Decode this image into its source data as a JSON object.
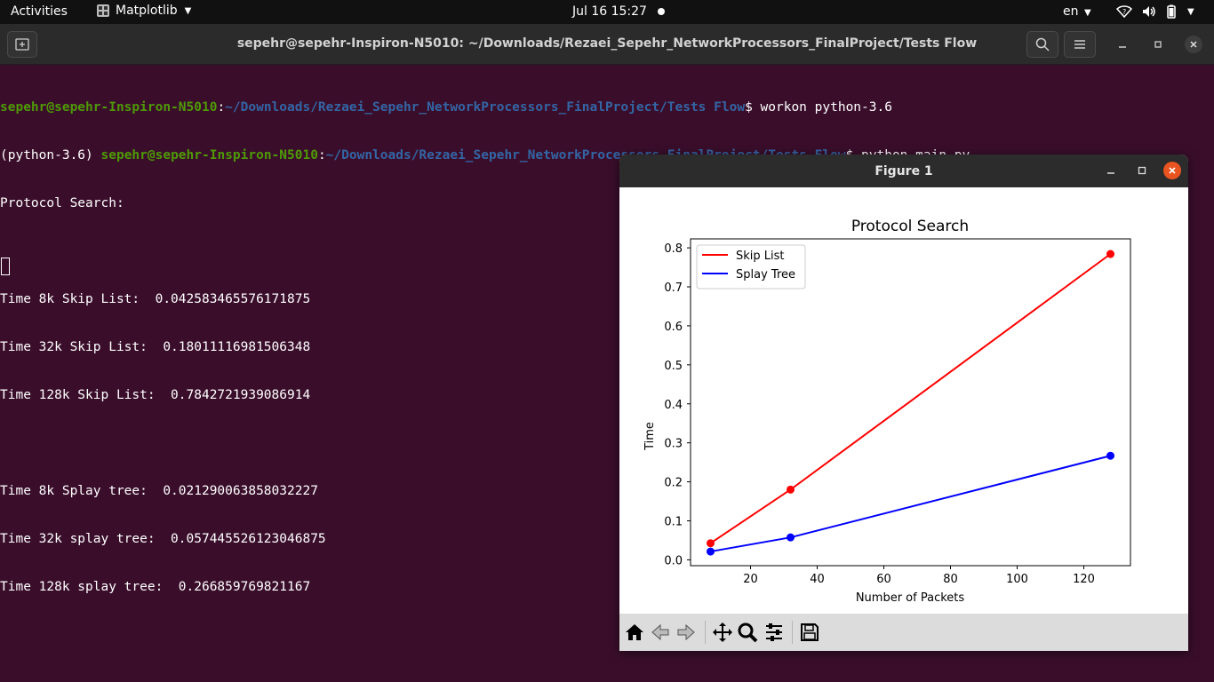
{
  "topbar": {
    "activities": "Activities",
    "app_name": "Matplotlib",
    "clock": "Jul 16  15:27",
    "language": "en"
  },
  "terminal": {
    "title": "sepehr@sepehr-Inspiron-N5010: ~/Downloads/Rezaei_Sepehr_NetworkProcessors_FinalProject/Tests Flow",
    "prompt1": {
      "user": "sepehr@sepehr-Inspiron-N5010",
      "path": "~/Downloads/Rezaei_Sepehr_NetworkProcessors_FinalProject/Tests Flow",
      "command": "$ workon python-3.6"
    },
    "prompt2": {
      "venv": "(python-3.6) ",
      "user": "sepehr@sepehr-Inspiron-N5010",
      "path": "~/Downloads/Rezaei_Sepehr_NetworkProcessors_FinalProject/Tests Flow",
      "command": "$ python main.py"
    },
    "output": [
      "Protocol Search:",
      "",
      "Time 8k Skip List:  0.042583465576171875",
      "Time 32k Skip List:  0.18011116981506348",
      "Time 128k Skip List:  0.7842721939086914",
      "",
      "Time 8k Splay tree:  0.021290063858032227",
      "Time 32k splay tree:  0.057445526123046875",
      "Time 128k splay tree:  0.266859769821167"
    ]
  },
  "figure": {
    "window_title": "Figure 1",
    "toolbar": [
      "home-icon",
      "back-icon",
      "forward-icon",
      "pan-icon",
      "zoom-icon",
      "configure-subplots-icon",
      "save-icon"
    ]
  },
  "chart_data": {
    "type": "line",
    "title": "Protocol Search",
    "xlabel": "Number of Packets",
    "ylabel": "Time",
    "xlim": [
      2,
      134
    ],
    "ylim": [
      -0.015,
      0.823
    ],
    "xticks": [
      20,
      40,
      60,
      80,
      100,
      120
    ],
    "yticks": [
      0.0,
      0.1,
      0.2,
      0.3,
      0.4,
      0.5,
      0.6,
      0.7,
      0.8
    ],
    "x": [
      8,
      32,
      128
    ],
    "series": [
      {
        "name": "Skip List",
        "color": "#ff0000",
        "values": [
          0.042583465576171875,
          0.18011116981506348,
          0.7842721939086914
        ]
      },
      {
        "name": "Splay Tree",
        "color": "#0000ff",
        "values": [
          0.021290063858032227,
          0.057445526123046875,
          0.266859769821167
        ]
      }
    ],
    "grid": false,
    "legend": "top-left"
  }
}
